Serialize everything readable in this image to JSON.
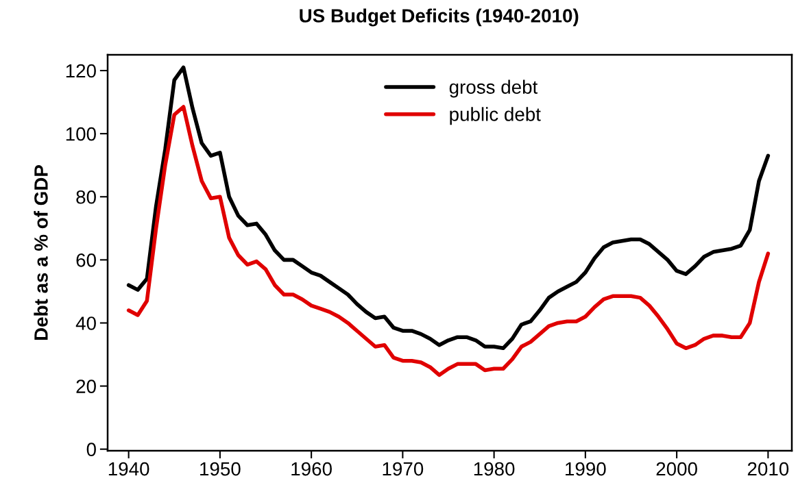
{
  "chart_data": {
    "type": "line",
    "title": "US Budget Deficits (1940-2010)",
    "ylabel": "Debt as a % of GDP",
    "x": [
      1940,
      1941,
      1942,
      1943,
      1944,
      1945,
      1946,
      1947,
      1948,
      1949,
      1950,
      1951,
      1952,
      1953,
      1954,
      1955,
      1956,
      1957,
      1958,
      1959,
      1960,
      1961,
      1962,
      1963,
      1964,
      1965,
      1966,
      1967,
      1968,
      1969,
      1970,
      1971,
      1972,
      1973,
      1974,
      1975,
      1976,
      1977,
      1978,
      1979,
      1980,
      1981,
      1982,
      1983,
      1984,
      1985,
      1986,
      1987,
      1988,
      1989,
      1990,
      1991,
      1992,
      1993,
      1994,
      1995,
      1996,
      1997,
      1998,
      1999,
      2000,
      2001,
      2002,
      2003,
      2004,
      2005,
      2006,
      2007,
      2008,
      2009,
      2010
    ],
    "series": [
      {
        "name": "gross debt",
        "color": "#000000",
        "values": [
          52,
          50.5,
          54,
          77,
          95,
          117,
          121,
          108,
          97,
          93,
          94,
          80,
          74,
          71,
          71.5,
          68,
          63,
          60,
          60,
          58,
          56,
          55,
          53,
          51,
          49,
          46,
          43.5,
          41.5,
          42,
          38.5,
          37.5,
          37.5,
          36.5,
          35,
          33,
          34.5,
          35.5,
          35.5,
          34.5,
          32.5,
          32.5,
          32,
          35,
          39.5,
          40.5,
          44,
          48,
          50,
          51.5,
          53,
          56,
          60.5,
          64,
          65.5,
          66,
          66.5,
          66.5,
          65,
          62.5,
          60,
          56.5,
          55.5,
          58,
          61,
          62.5,
          63,
          63.5,
          64.5,
          69.5,
          85,
          93
        ]
      },
      {
        "name": "public debt",
        "color": "#e00000",
        "values": [
          44,
          42.5,
          47,
          70,
          90,
          106,
          108.5,
          96,
          85,
          79.5,
          80,
          67,
          61.5,
          58.5,
          59.5,
          57,
          52,
          49,
          49,
          47.5,
          45.5,
          44.5,
          43.5,
          42,
          40,
          37.5,
          35,
          32.5,
          33,
          29,
          28,
          28,
          27.5,
          26,
          23.5,
          25.5,
          27,
          27,
          27,
          25,
          25.5,
          25.5,
          28.5,
          32.5,
          34,
          36.5,
          39,
          40,
          40.5,
          40.5,
          42,
          45,
          47.5,
          48.5,
          48.5,
          48.5,
          48,
          45.5,
          42,
          38,
          33.5,
          32,
          33,
          35,
          36,
          36,
          35.5,
          35.5,
          40,
          53,
          62
        ]
      }
    ],
    "xlim": [
      1937.7,
      2012.6
    ],
    "xticks": [
      1940,
      1950,
      1960,
      1970,
      1980,
      1990,
      2000,
      2010
    ],
    "ylim": [
      -0.5,
      125
    ],
    "yticks": [
      0,
      20,
      40,
      60,
      80,
      100,
      120
    ],
    "legend": "top",
    "grid": false,
    "marker": "none",
    "line_style": "solid"
  }
}
